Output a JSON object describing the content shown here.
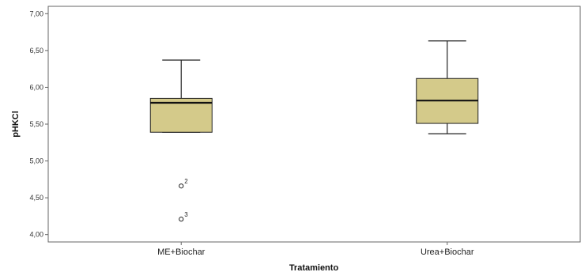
{
  "chart_data": {
    "type": "boxplot",
    "xlabel": "Tratamiento",
    "ylabel": "pHKCl",
    "ylim": [
      3.9,
      7.1
    ],
    "y_ticks": [
      {
        "value": 4.0,
        "label": "4,00"
      },
      {
        "value": 4.5,
        "label": "4,50"
      },
      {
        "value": 5.0,
        "label": "5,00"
      },
      {
        "value": 5.5,
        "label": "5,50"
      },
      {
        "value": 6.0,
        "label": "6,00"
      },
      {
        "value": 6.5,
        "label": "6,50"
      },
      {
        "value": 7.0,
        "label": "7,00"
      }
    ],
    "grid": false,
    "box_color": "#d4ca8a",
    "categories": [
      "ME+Biochar",
      "Urea+Biochar"
    ],
    "boxes": [
      {
        "category": "ME+Biochar",
        "whisker_low": 5.39,
        "q1": 5.39,
        "median": 5.79,
        "q3": 5.85,
        "whisker_high": 6.37,
        "outliers": [
          {
            "value": 4.66,
            "label": "2"
          },
          {
            "value": 4.21,
            "label": "3"
          }
        ]
      },
      {
        "category": "Urea+Biochar",
        "whisker_low": 5.37,
        "q1": 5.51,
        "median": 5.82,
        "q3": 6.12,
        "whisker_high": 6.63,
        "outliers": []
      }
    ]
  }
}
